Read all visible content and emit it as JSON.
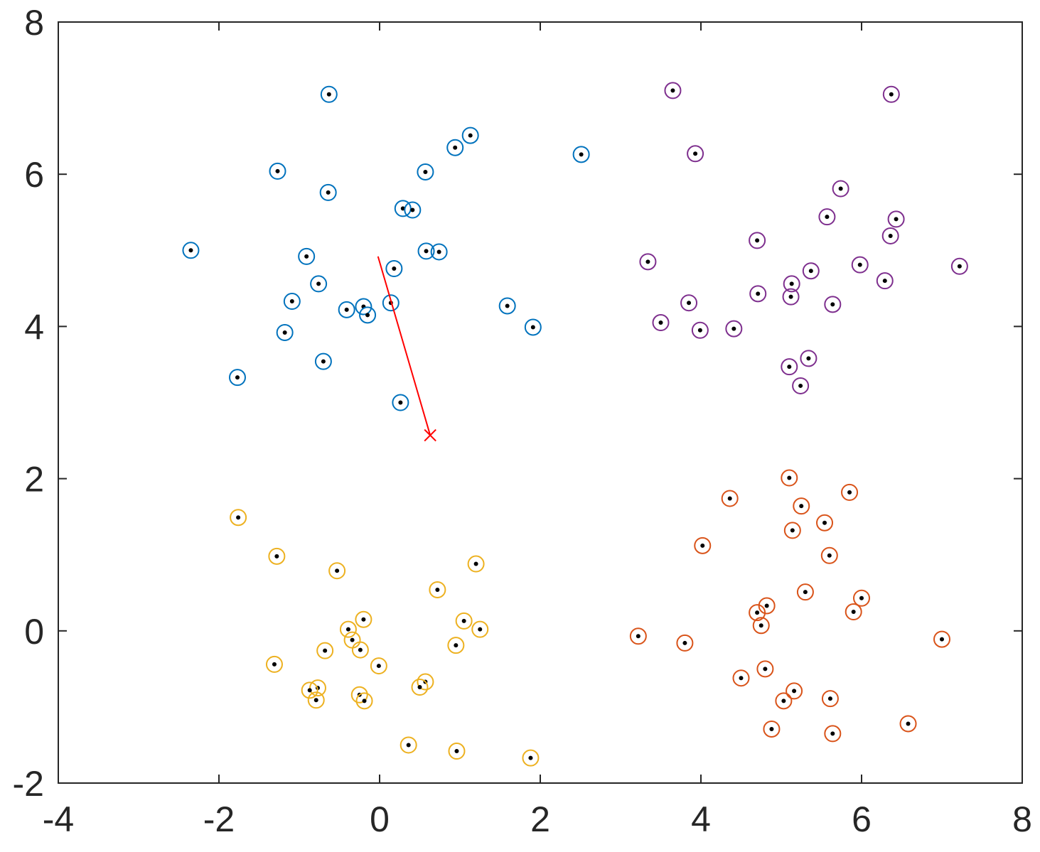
{
  "chart_data": {
    "type": "scatter",
    "title": "",
    "xlabel": "",
    "ylabel": "",
    "xlim": [
      -4,
      8
    ],
    "ylim": [
      -2,
      8
    ],
    "xticks": [
      -4,
      -2,
      0,
      2,
      4,
      6,
      8
    ],
    "yticks": [
      -2,
      0,
      2,
      4,
      6,
      8
    ],
    "xtick_labels": [
      "-4",
      "-2",
      "0",
      "2",
      "4",
      "6",
      "8"
    ],
    "ytick_labels": [
      "-2",
      "0",
      "2",
      "4",
      "6",
      "8"
    ],
    "grid": false,
    "colors": {
      "cluster_1": "#0072BD",
      "cluster_2": "#D95319",
      "cluster_3": "#EDB120",
      "cluster_4": "#7E2F8E",
      "points": "#000000",
      "path": "#FF0000",
      "axes": "#262626"
    },
    "series": [
      {
        "color_key": "cluster_1",
        "marker": "circle",
        "points": [
          [
            -0.63,
            7.05
          ],
          [
            -1.27,
            6.04
          ],
          [
            -0.64,
            5.76
          ],
          [
            0.57,
            6.03
          ],
          [
            0.94,
            6.35
          ],
          [
            1.13,
            6.51
          ],
          [
            2.51,
            6.26
          ],
          [
            0.29,
            5.55
          ],
          [
            0.41,
            5.53
          ],
          [
            -2.35,
            5.0
          ],
          [
            -0.91,
            4.92
          ],
          [
            0.58,
            4.99
          ],
          [
            0.74,
            4.98
          ],
          [
            0.18,
            4.76
          ],
          [
            -0.76,
            4.56
          ],
          [
            -1.09,
            4.33
          ],
          [
            -0.41,
            4.22
          ],
          [
            -0.2,
            4.26
          ],
          [
            -0.15,
            4.15
          ],
          [
            0.14,
            4.31
          ],
          [
            1.59,
            4.27
          ],
          [
            1.91,
            3.99
          ],
          [
            -1.18,
            3.92
          ],
          [
            -0.7,
            3.54
          ],
          [
            -1.77,
            3.33
          ],
          [
            0.26,
            3.0
          ]
        ]
      },
      {
        "color_key": "cluster_2",
        "marker": "circle",
        "points": [
          [
            5.1,
            2.01
          ],
          [
            5.85,
            1.82
          ],
          [
            4.36,
            1.74
          ],
          [
            5.25,
            1.64
          ],
          [
            5.54,
            1.42
          ],
          [
            5.14,
            1.32
          ],
          [
            4.02,
            1.12
          ],
          [
            5.6,
            0.99
          ],
          [
            5.3,
            0.51
          ],
          [
            6.0,
            0.43
          ],
          [
            4.82,
            0.33
          ],
          [
            4.7,
            0.24
          ],
          [
            5.9,
            0.25
          ],
          [
            4.75,
            0.07
          ],
          [
            3.22,
            -0.07
          ],
          [
            3.8,
            -0.16
          ],
          [
            7.0,
            -0.11
          ],
          [
            4.8,
            -0.5
          ],
          [
            4.5,
            -0.62
          ],
          [
            5.16,
            -0.79
          ],
          [
            5.03,
            -0.92
          ],
          [
            5.61,
            -0.89
          ],
          [
            6.58,
            -1.22
          ],
          [
            4.88,
            -1.29
          ],
          [
            5.64,
            -1.35
          ]
        ]
      },
      {
        "color_key": "cluster_3",
        "marker": "circle",
        "points": [
          [
            -1.76,
            1.49
          ],
          [
            -1.28,
            0.98
          ],
          [
            -0.53,
            0.79
          ],
          [
            1.2,
            0.88
          ],
          [
            0.72,
            0.54
          ],
          [
            -0.2,
            0.15
          ],
          [
            1.05,
            0.13
          ],
          [
            -0.39,
            0.02
          ],
          [
            1.25,
            0.02
          ],
          [
            -0.34,
            -0.12
          ],
          [
            -0.24,
            -0.25
          ],
          [
            0.95,
            -0.19
          ],
          [
            -0.68,
            -0.26
          ],
          [
            -0.01,
            -0.46
          ],
          [
            -1.31,
            -0.44
          ],
          [
            0.57,
            -0.67
          ],
          [
            0.5,
            -0.74
          ],
          [
            -0.77,
            -0.75
          ],
          [
            -0.87,
            -0.78
          ],
          [
            -0.25,
            -0.84
          ],
          [
            -0.79,
            -0.91
          ],
          [
            -0.19,
            -0.92
          ],
          [
            0.36,
            -1.5
          ],
          [
            0.96,
            -1.58
          ],
          [
            1.88,
            -1.67
          ]
        ]
      },
      {
        "color_key": "cluster_4",
        "marker": "circle",
        "points": [
          [
            3.65,
            7.1
          ],
          [
            6.37,
            7.05
          ],
          [
            3.93,
            6.27
          ],
          [
            5.74,
            5.81
          ],
          [
            5.57,
            5.44
          ],
          [
            6.43,
            5.41
          ],
          [
            4.7,
            5.13
          ],
          [
            6.36,
            5.19
          ],
          [
            3.34,
            4.85
          ],
          [
            5.98,
            4.81
          ],
          [
            7.22,
            4.79
          ],
          [
            5.37,
            4.73
          ],
          [
            6.29,
            4.6
          ],
          [
            5.13,
            4.56
          ],
          [
            4.71,
            4.43
          ],
          [
            5.12,
            4.39
          ],
          [
            3.85,
            4.31
          ],
          [
            5.64,
            4.29
          ],
          [
            3.5,
            4.05
          ],
          [
            3.99,
            3.95
          ],
          [
            4.41,
            3.97
          ],
          [
            5.34,
            3.58
          ],
          [
            5.1,
            3.47
          ],
          [
            5.24,
            3.22
          ]
        ]
      }
    ],
    "path": {
      "start": [
        -0.02,
        4.92
      ],
      "end": [
        0.63,
        2.57
      ],
      "end_marker": "x"
    }
  }
}
